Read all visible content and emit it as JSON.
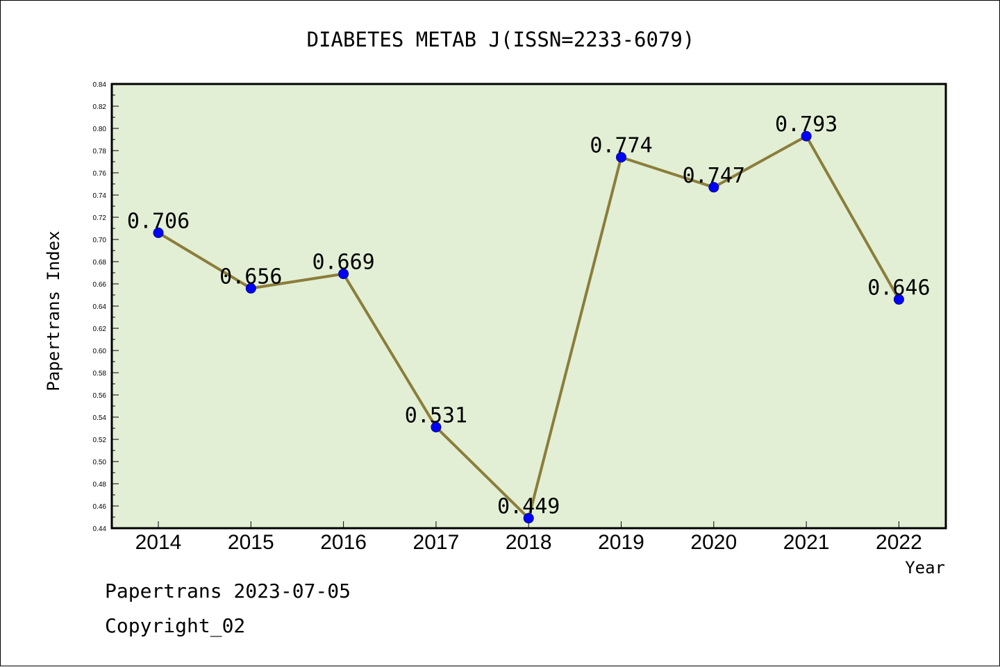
{
  "chart_data": {
    "type": "line",
    "title": "DIABETES METAB J(ISSN=2233-6079)",
    "xlabel": "Year",
    "ylabel": "Papertrans Index",
    "categories": [
      "2014",
      "2015",
      "2016",
      "2017",
      "2018",
      "2019",
      "2020",
      "2021",
      "2022"
    ],
    "values": [
      0.706,
      0.656,
      0.669,
      0.531,
      0.449,
      0.774,
      0.747,
      0.793,
      0.646
    ],
    "data_labels": [
      "0.706",
      "0.656",
      "0.669",
      "0.531",
      "0.449",
      "0.774",
      "0.747",
      "0.793",
      "0.646"
    ],
    "ylim": [
      0.44,
      0.84
    ],
    "yticks": [
      "0.44",
      "0.46",
      "0.48",
      "0.50",
      "0.52",
      "0.54",
      "0.56",
      "0.58",
      "0.60",
      "0.62",
      "0.64",
      "0.66",
      "0.68",
      "0.70",
      "0.72",
      "0.74",
      "0.76",
      "0.78",
      "0.80",
      "0.82",
      "0.84"
    ],
    "grid": false,
    "colors": {
      "plot_background": "#e2efd5",
      "line": "#8b7d3a",
      "marker": "#0000ff"
    }
  },
  "footer": {
    "line1": "Papertrans 2023-07-05",
    "line2": "Copyright_02"
  }
}
